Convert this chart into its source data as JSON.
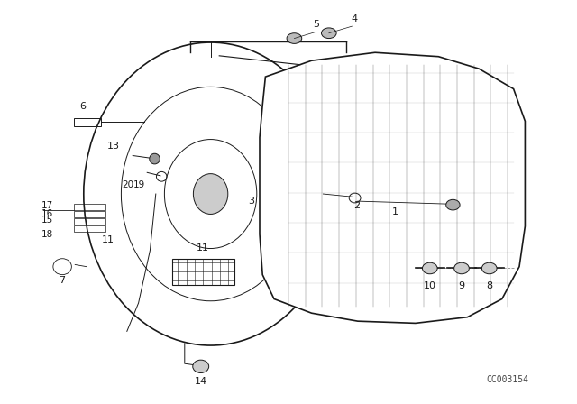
{
  "bg": "#ffffff",
  "lc": "#1a1a1a",
  "watermark": "CC003154",
  "watermark_fontsize": 7,
  "label_fontsize": 8
}
